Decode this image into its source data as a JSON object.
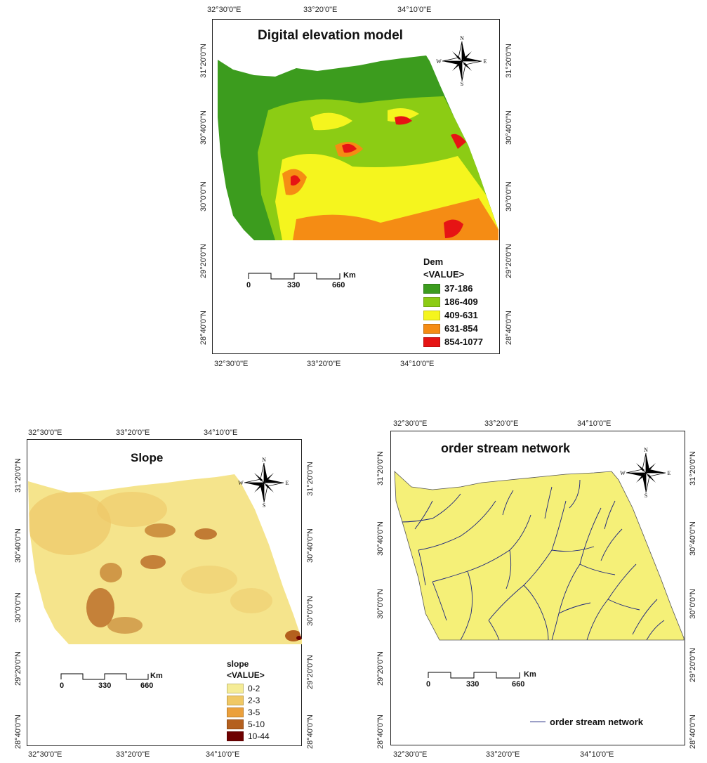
{
  "maps": {
    "dem": {
      "title": "Digital elevation model",
      "top_lon": [
        "32°30'0\"E",
        "33°20'0\"E",
        "34°10'0\"E"
      ],
      "bottom_lon": [
        "32°30'0\"E",
        "33°20'0\"E",
        "34°10'0\"E"
      ],
      "left_lat": [
        "31°20'0\"N",
        "30°40'0\"N",
        "30°0'0\"N",
        "29°20'0\"N",
        "28°40'0\"N"
      ],
      "right_lat": [
        "31°20'0\"N",
        "30°40'0\"N",
        "30°0'0\"N",
        "29°20'0\"N",
        "28°40'0\"N"
      ],
      "legend_title": "Dem",
      "legend_subtitle": "<VALUE>",
      "legend_items": [
        {
          "label": "37-186",
          "color": "#3c9c1e"
        },
        {
          "label": "186-409",
          "color": "#8ccc14"
        },
        {
          "label": "409-631",
          "color": "#f5f51e"
        },
        {
          "label": "631-854",
          "color": "#f58c14"
        },
        {
          "label": "854-1077",
          "color": "#e61414"
        }
      ],
      "scale": {
        "ticks": [
          "0",
          "330",
          "660"
        ],
        "unit": "Km"
      }
    },
    "slope": {
      "title": "Slope",
      "top_lon": [
        "32°30'0\"E",
        "33°20'0\"E",
        "34°10'0\"E"
      ],
      "bottom_lon": [
        "32°30'0\"E",
        "33°20'0\"E",
        "34°10'0\"E"
      ],
      "left_lat": [
        "31°20'0\"N",
        "30°40'0\"N",
        "30°0'0\"N",
        "29°20'0\"N",
        "28°40'0\"N"
      ],
      "right_lat": [
        "31°20'0\"N",
        "30°40'0\"N",
        "30°0'0\"N",
        "29°20'0\"N",
        "28°40'0\"N"
      ],
      "legend_title": "slope",
      "legend_subtitle": "<VALUE>",
      "legend_items": [
        {
          "label": "0-2",
          "color": "#f5ec96"
        },
        {
          "label": "2-3",
          "color": "#f0c864"
        },
        {
          "label": "3-5",
          "color": "#eba03c"
        },
        {
          "label": "5-10",
          "color": "#b4601e"
        },
        {
          "label": "10-44",
          "color": "#6e0000"
        }
      ],
      "scale": {
        "ticks": [
          "0",
          "330",
          "660"
        ],
        "unit": "Km"
      }
    },
    "stream": {
      "title": "order stream network",
      "top_lon": [
        "32°30'0\"E",
        "33°20'0\"E",
        "34°10'0\"E"
      ],
      "bottom_lon": [
        "32°30'0\"E",
        "33°20'0\"E",
        "34°10'0\"E"
      ],
      "left_lat": [
        "31°20'0\"N",
        "30°40'0\"N",
        "30°0'0\"N",
        "29°20'0\"N",
        "28°40'0\"N"
      ],
      "right_lat": [
        "31°20'0\"N",
        "30°40'0\"N",
        "30°0'0\"N",
        "29°20'0\"N",
        "28°40'0\"N"
      ],
      "legend_label": "order stream network",
      "legend_color": "#1a237e",
      "fill_color": "#f5f078",
      "scale": {
        "ticks": [
          "0",
          "330",
          "660"
        ],
        "unit": "Km"
      }
    }
  },
  "compass": {
    "n": "N",
    "s": "S",
    "e": "E",
    "w": "W"
  }
}
